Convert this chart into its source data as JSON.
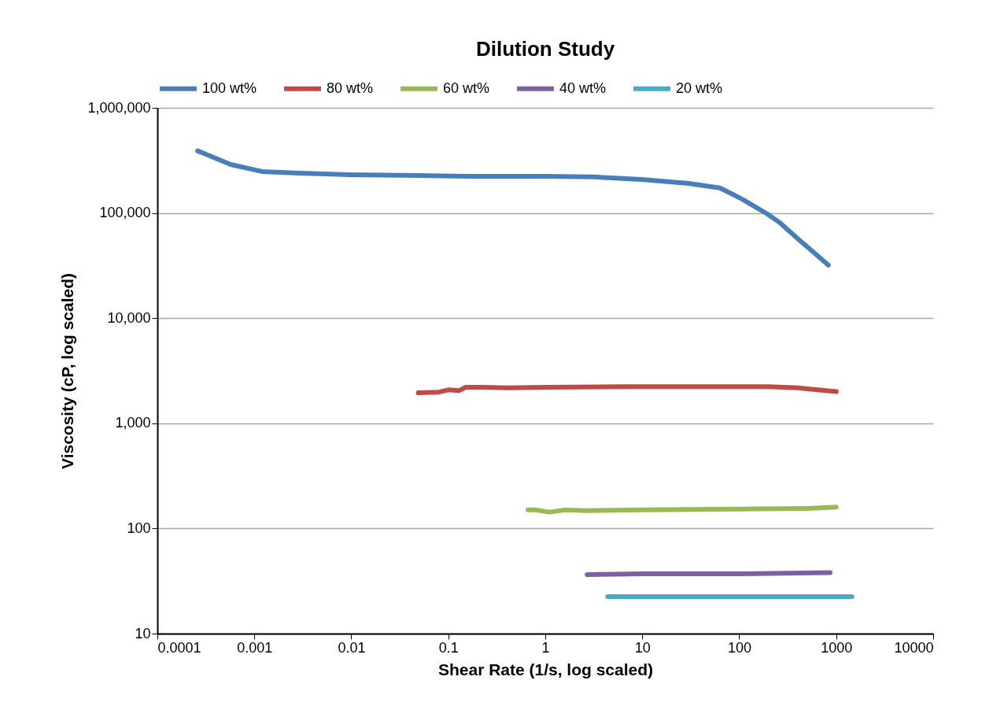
{
  "chart_data": {
    "type": "line",
    "title": "Dilution Study",
    "xlabel": "Shear Rate (1/s, log scaled)",
    "ylabel": "Viscosity (cP, log scaled)",
    "log": "xy",
    "grid": "y",
    "legend": "top",
    "line_style": "solid",
    "xlim": [
      0.0001,
      10000
    ],
    "xticks": [
      0.0001,
      0.001,
      0.01,
      0.1,
      1,
      10,
      100,
      1000,
      10000
    ],
    "ylim": [
      10,
      1000000
    ],
    "yticks": [
      10,
      100,
      {
        "value": 1000,
        "label": "1,000"
      },
      {
        "value": 10000,
        "label": "10,000"
      },
      {
        "value": 100000,
        "label": "100,000"
      },
      {
        "value": 1000000,
        "label": "1,000,000"
      }
    ],
    "series": [
      {
        "name": "100 wt%",
        "color": "#4a7ebb",
        "x": [
          0.00026,
          0.00057,
          0.0012,
          0.0026,
          0.0097,
          0.036,
          0.16,
          1.0,
          3.2,
          9.8,
          30,
          63,
          83,
          111,
          194,
          257,
          410,
          830
        ],
        "values": [
          390000,
          289000,
          248000,
          240000,
          231000,
          228000,
          223000,
          223000,
          220000,
          208000,
          191000,
          173000,
          153000,
          133000,
          98000,
          82000,
          56000,
          32000
        ]
      },
      {
        "name": "80 wt%",
        "color": "#be4b48",
        "x": [
          0.049,
          0.08,
          0.1,
          0.13,
          0.15,
          0.23,
          0.41,
          1.0,
          6.7,
          43,
          195,
          410,
          1000
        ],
        "values": [
          1950,
          1980,
          2080,
          2050,
          2200,
          2200,
          2170,
          2200,
          2230,
          2230,
          2230,
          2170,
          2000
        ]
      },
      {
        "name": "60 wt%",
        "color": "#98b954",
        "x": [
          0.66,
          0.8,
          1.1,
          1.6,
          2.6,
          10,
          100,
          500,
          1000
        ],
        "values": [
          150,
          150,
          143,
          150,
          148,
          150,
          153,
          155,
          160
        ]
      },
      {
        "name": "40 wt%",
        "color": "#7d60a0",
        "x": [
          2.7,
          10,
          100,
          865
        ],
        "values": [
          36.5,
          37,
          37,
          38
        ]
      },
      {
        "name": "20 wt%",
        "color": "#46aac5",
        "x": [
          4.4,
          10,
          100,
          1450
        ],
        "values": [
          22.5,
          22.5,
          22.5,
          22.5
        ]
      }
    ]
  }
}
